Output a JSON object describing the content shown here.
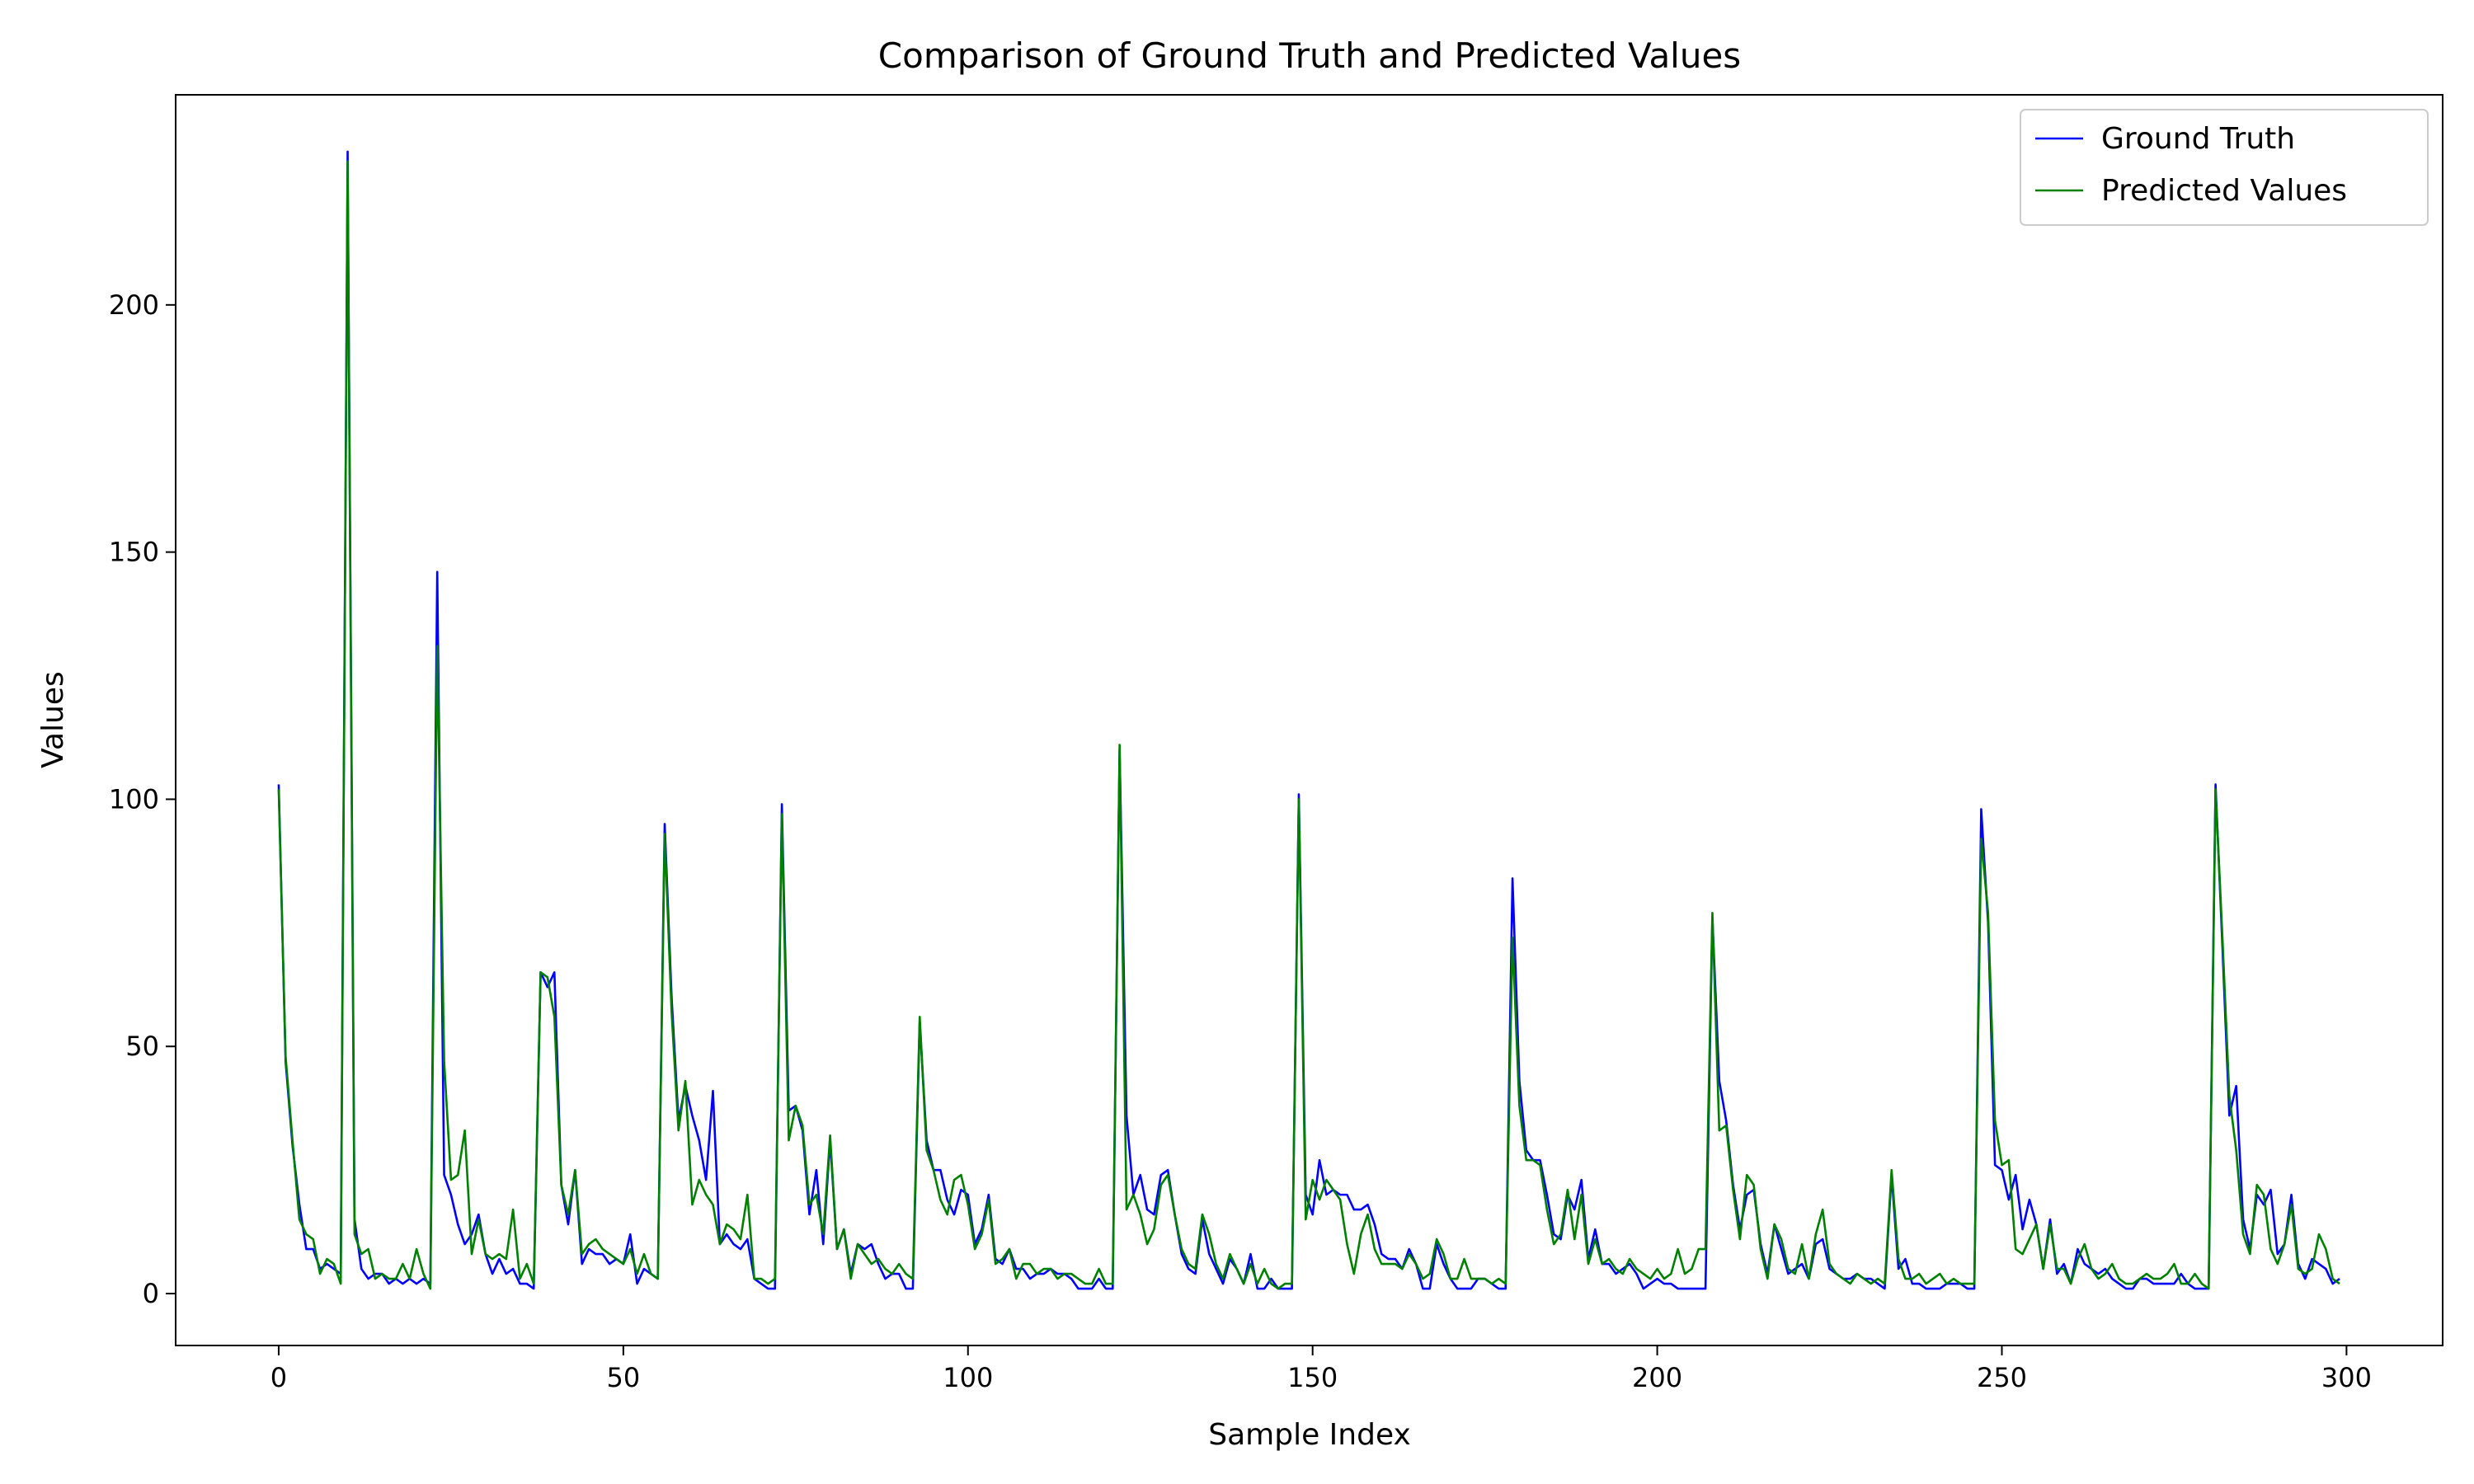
{
  "chart_data": {
    "type": "line",
    "title": "Comparison of Ground Truth and Predicted Values",
    "xlabel": "Sample Index",
    "ylabel": "Values",
    "x": [
      0,
      1,
      2,
      3,
      4,
      5,
      6,
      7,
      8,
      9,
      10,
      11,
      12,
      13,
      14,
      15,
      16,
      17,
      18,
      19,
      20,
      21,
      22,
      23,
      24,
      25,
      26,
      27,
      28,
      29,
      30,
      31,
      32,
      33,
      34,
      35,
      36,
      37,
      38,
      39,
      40,
      41,
      42,
      43,
      44,
      45,
      46,
      47,
      48,
      49,
      50,
      51,
      52,
      53,
      54,
      55,
      56,
      57,
      58,
      59,
      60,
      61,
      62,
      63,
      64,
      65,
      66,
      67,
      68,
      69,
      70,
      71,
      72,
      73,
      74,
      75,
      76,
      77,
      78,
      79,
      80,
      81,
      82,
      83,
      84,
      85,
      86,
      87,
      88,
      89,
      90,
      91,
      92,
      93,
      94,
      95,
      96,
      97,
      98,
      99,
      100,
      101,
      102,
      103,
      104,
      105,
      106,
      107,
      108,
      109,
      110,
      111,
      112,
      113,
      114,
      115,
      116,
      117,
      118,
      119,
      120,
      121,
      122,
      123,
      124,
      125,
      126,
      127,
      128,
      129,
      130,
      131,
      132,
      133,
      134,
      135,
      136,
      137,
      138,
      139,
      140,
      141,
      142,
      143,
      144,
      145,
      146,
      147,
      148,
      149,
      150,
      151,
      152,
      153,
      154,
      155,
      156,
      157,
      158,
      159,
      160,
      161,
      162,
      163,
      164,
      165,
      166,
      167,
      168,
      169,
      170,
      171,
      172,
      173,
      174,
      175,
      176,
      177,
      178,
      179,
      180,
      181,
      182,
      183,
      184,
      185,
      186,
      187,
      188,
      189,
      190,
      191,
      192,
      193,
      194,
      195,
      196,
      197,
      198,
      199,
      200,
      201,
      202,
      203,
      204,
      205,
      206,
      207,
      208,
      209,
      210,
      211,
      212,
      213,
      214,
      215,
      216,
      217,
      218,
      219,
      220,
      221,
      222,
      223,
      224,
      225,
      226,
      227,
      228,
      229,
      230,
      231,
      232,
      233,
      234,
      235,
      236,
      237,
      238,
      239,
      240,
      241,
      242,
      243,
      244,
      245,
      246,
      247,
      248,
      249,
      250,
      251,
      252,
      253,
      254,
      255,
      256,
      257,
      258,
      259,
      260,
      261,
      262,
      263,
      264,
      265,
      266,
      267,
      268,
      269,
      270,
      271,
      272,
      273,
      274,
      275,
      276,
      277,
      278,
      279,
      280,
      281,
      282,
      283,
      284,
      285,
      286,
      287,
      288,
      289,
      290,
      291,
      292,
      293,
      294,
      295,
      296,
      297,
      298,
      299
    ],
    "series": [
      {
        "name": "Ground Truth",
        "color": "#0000ff",
        "values": [
          103,
          47,
          30,
          18,
          9,
          9,
          5,
          6,
          5,
          4,
          231,
          15,
          5,
          3,
          4,
          4,
          2,
          3,
          2,
          3,
          2,
          3,
          2,
          146,
          24,
          20,
          14,
          10,
          12,
          16,
          8,
          4,
          7,
          4,
          5,
          2,
          2,
          1,
          65,
          62,
          65,
          22,
          14,
          25,
          6,
          9,
          8,
          8,
          6,
          7,
          6,
          12,
          2,
          5,
          4,
          3,
          95,
          60,
          35,
          42,
          36,
          31,
          23,
          41,
          10,
          12,
          10,
          9,
          11,
          3,
          2,
          1,
          1,
          99,
          37,
          38,
          33,
          16,
          25,
          10,
          31,
          9,
          13,
          4,
          10,
          9,
          10,
          6,
          3,
          4,
          4,
          1,
          1,
          55,
          31,
          25,
          25,
          19,
          16,
          21,
          20,
          10,
          13,
          20,
          7,
          6,
          9,
          5,
          5,
          3,
          4,
          4,
          5,
          4,
          4,
          3,
          1,
          1,
          1,
          3,
          1,
          1,
          110,
          36,
          20,
          24,
          17,
          16,
          24,
          25,
          16,
          8,
          5,
          4,
          15,
          8,
          5,
          2,
          7,
          5,
          2,
          8,
          1,
          1,
          3,
          1,
          1,
          1,
          101,
          20,
          16,
          27,
          20,
          21,
          20,
          20,
          17,
          17,
          18,
          14,
          8,
          7,
          7,
          5,
          9,
          6,
          1,
          1,
          10,
          6,
          3,
          1,
          1,
          1,
          3,
          3,
          2,
          1,
          1,
          84,
          43,
          29,
          27,
          27,
          20,
          12,
          11,
          20,
          17,
          23,
          7,
          13,
          6,
          6,
          4,
          5,
          6,
          4,
          1,
          2,
          3,
          2,
          2,
          1,
          1,
          1,
          1,
          1,
          76,
          43,
          35,
          22,
          13,
          20,
          21,
          10,
          4,
          14,
          9,
          4,
          5,
          6,
          3,
          10,
          11,
          5,
          4,
          3,
          3,
          4,
          3,
          3,
          2,
          1,
          24,
          5,
          7,
          2,
          2,
          1,
          1,
          1,
          2,
          2,
          2,
          1,
          1,
          98,
          75,
          26,
          25,
          19,
          24,
          13,
          19,
          14,
          5,
          15,
          4,
          6,
          2,
          9,
          6,
          5,
          4,
          5,
          3,
          2,
          1,
          1,
          3,
          3,
          2,
          2,
          2,
          2,
          4,
          2,
          1,
          1,
          1,
          103,
          70,
          36,
          42,
          15,
          9,
          20,
          18,
          21,
          8,
          10,
          20,
          6,
          3,
          7,
          6,
          5,
          2,
          3
        ]
      },
      {
        "name": "Predicted Values",
        "color": "#008000",
        "values": [
          102,
          48,
          31,
          15,
          12,
          11,
          4,
          7,
          6,
          2,
          229,
          12,
          8,
          9,
          3,
          4,
          3,
          3,
          6,
          3,
          9,
          4,
          1,
          131,
          47,
          23,
          24,
          33,
          8,
          15,
          8,
          7,
          8,
          7,
          17,
          3,
          6,
          2,
          65,
          64,
          56,
          22,
          16,
          25,
          8,
          10,
          11,
          9,
          8,
          7,
          6,
          9,
          4,
          8,
          4,
          3,
          93,
          57,
          33,
          43,
          18,
          23,
          20,
          18,
          10,
          14,
          13,
          11,
          20,
          3,
          3,
          2,
          3,
          97,
          31,
          38,
          34,
          18,
          20,
          12,
          32,
          9,
          13,
          3,
          10,
          8,
          6,
          7,
          5,
          4,
          6,
          4,
          3,
          56,
          29,
          25,
          19,
          16,
          23,
          24,
          18,
          9,
          12,
          19,
          6,
          7,
          9,
          3,
          6,
          6,
          4,
          5,
          5,
          3,
          4,
          4,
          3,
          2,
          2,
          5,
          2,
          2,
          111,
          17,
          20,
          16,
          10,
          13,
          22,
          24,
          16,
          9,
          6,
          5,
          16,
          12,
          6,
          3,
          8,
          5,
          2,
          6,
          2,
          5,
          2,
          1,
          2,
          2,
          100,
          15,
          23,
          19,
          23,
          21,
          19,
          10,
          4,
          12,
          16,
          9,
          6,
          6,
          6,
          5,
          8,
          6,
          3,
          4,
          11,
          8,
          3,
          3,
          7,
          3,
          3,
          3,
          2,
          3,
          2,
          72,
          38,
          27,
          27,
          26,
          17,
          10,
          12,
          21,
          11,
          20,
          6,
          11,
          6,
          7,
          5,
          4,
          7,
          5,
          4,
          3,
          5,
          3,
          4,
          9,
          4,
          5,
          9,
          9,
          77,
          33,
          34,
          21,
          11,
          24,
          22,
          9,
          3,
          14,
          11,
          5,
          4,
          10,
          3,
          12,
          17,
          6,
          4,
          3,
          2,
          4,
          3,
          2,
          3,
          2,
          25,
          7,
          3,
          3,
          4,
          2,
          3,
          4,
          2,
          3,
          2,
          2,
          2,
          92,
          77,
          35,
          26,
          27,
          9,
          8,
          11,
          14,
          5,
          14,
          5,
          5,
          2,
          7,
          10,
          5,
          3,
          4,
          6,
          3,
          2,
          2,
          3,
          4,
          3,
          3,
          4,
          6,
          2,
          2,
          4,
          2,
          1,
          102,
          72,
          40,
          29,
          12,
          8,
          22,
          20,
          9,
          6,
          10,
          18,
          5,
          4,
          5,
          12,
          9,
          3,
          2
        ]
      }
    ],
    "xlim": [
      -14.95,
      313.95
    ],
    "ylim": [
      -10.5,
      242.5
    ],
    "xticks": [
      0,
      50,
      100,
      150,
      200,
      250,
      300
    ],
    "yticks": [
      0,
      50,
      100,
      150,
      200
    ],
    "legend": "upper right"
  }
}
